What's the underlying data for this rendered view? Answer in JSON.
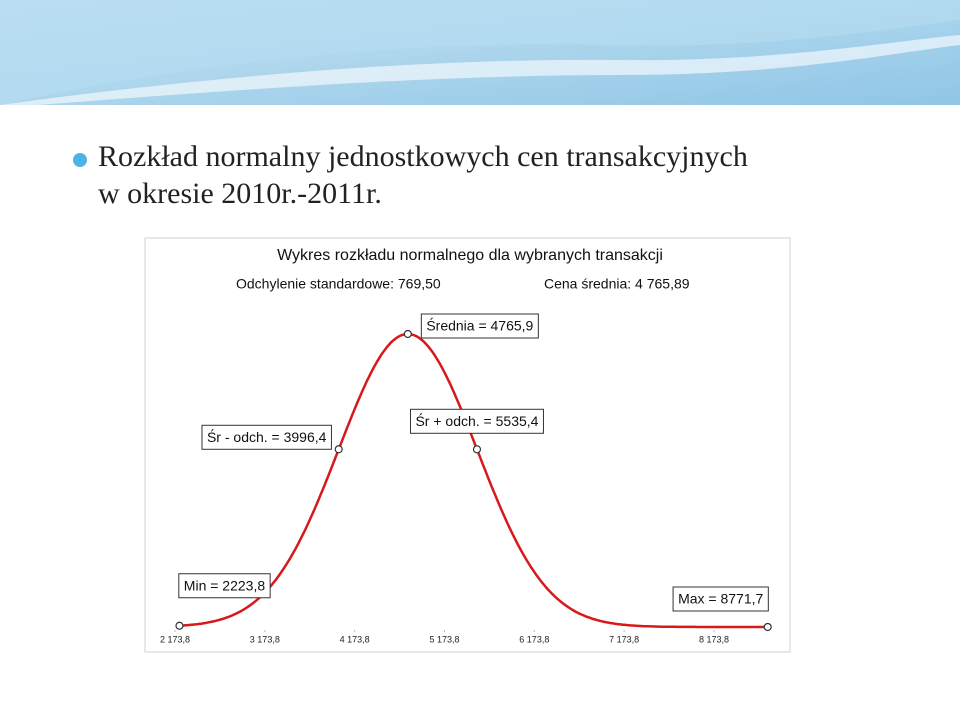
{
  "slide": {
    "bullet_lines": [
      "Rozkład normalny jednostkowych cen transakcyjnych",
      "w okresie 2010r.-2011r."
    ]
  },
  "chart_data": {
    "type": "normal",
    "title": "Wykres rozkładu normalnego dla wybranych transakcji",
    "std": {
      "value": 769.5,
      "label": "Odchylenie standardowe: 769,50"
    },
    "mean": {
      "value": 4765.89,
      "label": "Cena średnia: 4 765,89"
    },
    "points": [
      {
        "name": "Min = 2223,8",
        "x": 2223.8
      },
      {
        "name": "Śr - odch. = 3996,4",
        "x": 3996.4
      },
      {
        "name": "Średnia = 4765,9",
        "x": 4765.9
      },
      {
        "name": "Śr + odch. = 5535,4",
        "x": 5535.4
      },
      {
        "name": "Max = 8771,7",
        "x": 8771.7
      }
    ],
    "color": "#d7191c",
    "xlim": [
      1840,
      9020
    ],
    "xticks": [
      {
        "value": 2173.8,
        "label": "2 173,8"
      },
      {
        "value": 3173.8,
        "label": "3 173,8"
      },
      {
        "value": 4173.8,
        "label": "4 173,8"
      },
      {
        "value": 5173.8,
        "label": "5 173,8"
      },
      {
        "value": 6173.8,
        "label": "6 173,8"
      },
      {
        "value": 7173.8,
        "label": "7 173,8"
      },
      {
        "value": 8173.8,
        "label": "8 173,8"
      }
    ]
  }
}
